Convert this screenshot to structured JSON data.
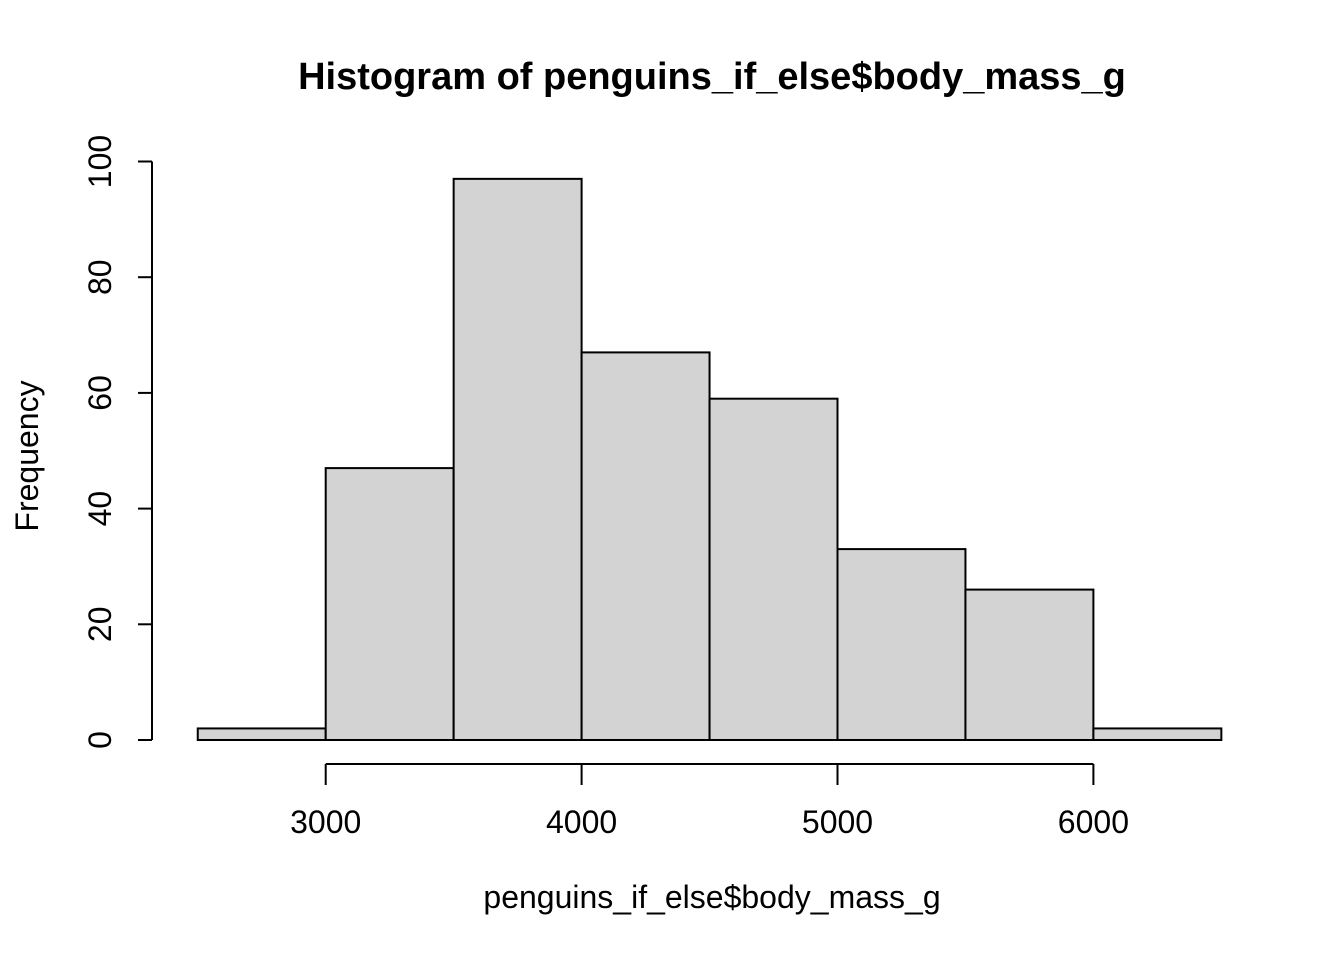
{
  "chart_data": {
    "type": "bar",
    "subtype": "histogram",
    "title": "Histogram of penguins_if_else$body_mass_g",
    "xlabel": "penguins_if_else$body_mass_g",
    "ylabel": "Frequency",
    "bin_breaks": [
      2500,
      3000,
      3500,
      4000,
      4500,
      5000,
      5500,
      6000,
      6500
    ],
    "counts": [
      2,
      47,
      97,
      67,
      59,
      33,
      26,
      2
    ],
    "x_ticks": [
      3000,
      4000,
      5000,
      6000
    ],
    "y_ticks": [
      0,
      20,
      40,
      60,
      80,
      100
    ],
    "xlim": [
      2500,
      6500
    ],
    "ylim": [
      0,
      100
    ],
    "grid": false,
    "legend": false,
    "bar_fill": "#D3D3D3",
    "bar_stroke": "#000000",
    "axis_color": "#000000",
    "background": "#FFFFFF"
  }
}
